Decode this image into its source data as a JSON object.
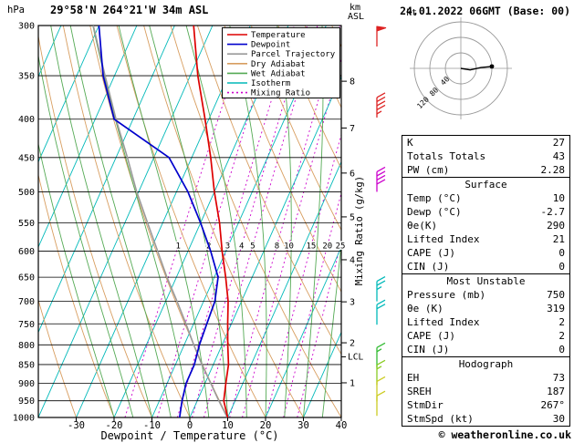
{
  "header": {
    "pressure_unit": "hPa",
    "station": "29°58'N 264°21'W 34m ASL",
    "datetime": "24.01.2022 06GMT (Base: 00)",
    "altitude_unit_line1": "km",
    "altitude_unit_line2": "ASL"
  },
  "axes": {
    "pressure_ticks": [
      300,
      350,
      400,
      450,
      500,
      550,
      600,
      650,
      700,
      750,
      800,
      850,
      900,
      950,
      1000
    ],
    "temp_ticks": [
      -30,
      -20,
      -10,
      0,
      10,
      20,
      30,
      40
    ],
    "x_title": "Dewpoint / Temperature (°C)",
    "mixing_ratio_axis_label": "Mixing Ratio (g/kg)",
    "km_marks": [
      {
        "km": 8,
        "p": 356
      },
      {
        "km": 7,
        "p": 411
      },
      {
        "km": 6,
        "p": 472
      },
      {
        "km": 5,
        "p": 540
      },
      {
        "km": 4,
        "p": 616
      },
      {
        "km": 3,
        "p": 701
      },
      {
        "km": 2,
        "p": 795
      },
      {
        "km": 1,
        "p": 899
      }
    ],
    "lcl": {
      "label": "LCL",
      "pressure": 830
    }
  },
  "legend": [
    {
      "label": "Temperature",
      "color": "#dd0000",
      "dash": ""
    },
    {
      "label": "Dewpoint",
      "color": "#0000cc",
      "dash": ""
    },
    {
      "label": "Parcel Trajectory",
      "color": "#9a9a9a",
      "dash": ""
    },
    {
      "label": "Dry Adiabat",
      "color": "#d89e60",
      "dash": ""
    },
    {
      "label": "Wet Adiabat",
      "color": "#55aa55",
      "dash": ""
    },
    {
      "label": "Isotherm",
      "color": "#00b9b9",
      "dash": ""
    },
    {
      "label": "Mixing Ratio",
      "color": "#cc00cc",
      "dash": "2,3"
    }
  ],
  "chart_data": {
    "type": "line",
    "variant": "skew-t-log-p-sounding",
    "title": "29°58'N 264°21'W 34m ASL",
    "xlabel": "Dewpoint / Temperature (°C)",
    "ylabel": "hPa",
    "x_range_at_surface": [
      -40,
      40
    ],
    "pressure_range": [
      300,
      1000
    ],
    "grid": {
      "isotherm": {
        "color": "#00b9b9",
        "min_c": -120,
        "max_c": 40,
        "step_c": 10
      },
      "dry_adiabat": {
        "color": "#d89e60",
        "theta_min_c": -40,
        "theta_max_c": 180,
        "step_c": 10
      },
      "wet_adiabat": {
        "color": "#55aa55",
        "start_min_c": -20,
        "start_max_c": 35,
        "step_c": 5
      },
      "mixing_ratio": {
        "color": "#cc00cc",
        "values": [
          1,
          2,
          3,
          4,
          5,
          8,
          10,
          15,
          20,
          25
        ],
        "label_pressure": 590
      },
      "pressure_line_color": "#000000"
    },
    "series": [
      {
        "name": "Temperature",
        "color": "#dd0000",
        "width": 1.7,
        "points": [
          [
            1000,
            10
          ],
          [
            950,
            7
          ],
          [
            900,
            5.5
          ],
          [
            850,
            4
          ],
          [
            800,
            1.5
          ],
          [
            750,
            -1
          ],
          [
            700,
            -3.5
          ],
          [
            650,
            -7
          ],
          [
            600,
            -11
          ],
          [
            550,
            -15
          ],
          [
            500,
            -20
          ],
          [
            450,
            -25
          ],
          [
            400,
            -31
          ],
          [
            350,
            -38
          ],
          [
            300,
            -45
          ]
        ]
      },
      {
        "name": "Dewpoint",
        "color": "#0000cc",
        "width": 1.7,
        "points": [
          [
            1000,
            -2.7
          ],
          [
            950,
            -4
          ],
          [
            900,
            -5
          ],
          [
            850,
            -5
          ],
          [
            800,
            -6
          ],
          [
            750,
            -6.5
          ],
          [
            700,
            -7
          ],
          [
            650,
            -9
          ],
          [
            600,
            -14
          ],
          [
            550,
            -20
          ],
          [
            500,
            -27
          ],
          [
            450,
            -36
          ],
          [
            400,
            -55
          ],
          [
            350,
            -63
          ],
          [
            300,
            -70
          ]
        ]
      },
      {
        "name": "Parcel Trajectory",
        "color": "#9a9a9a",
        "width": 1.6,
        "points": [
          [
            1000,
            9.9
          ],
          [
            950,
            5.7
          ],
          [
            900,
            1.5
          ],
          [
            850,
            -3
          ],
          [
            800,
            -7.5
          ],
          [
            750,
            -12
          ],
          [
            700,
            -17
          ],
          [
            650,
            -22.5
          ],
          [
            600,
            -28
          ],
          [
            550,
            -34
          ],
          [
            500,
            -40.5
          ],
          [
            450,
            -47
          ],
          [
            400,
            -54.5
          ],
          [
            350,
            -62.5
          ],
          [
            300,
            -71.5
          ]
        ]
      }
    ],
    "wind_barbs": [
      {
        "p": 320,
        "speed_kt": 50,
        "color": "#dd2222"
      },
      {
        "p": 398,
        "speed_kt": 45,
        "color": "#dd2222"
      },
      {
        "p": 500,
        "speed_kt": 40,
        "color": "#cc00cc"
      },
      {
        "p": 700,
        "speed_kt": 25,
        "color": "#00b9b9"
      },
      {
        "p": 752,
        "speed_kt": 20,
        "color": "#00b9b9"
      },
      {
        "p": 858,
        "speed_kt": 15,
        "color": "#33bb33"
      },
      {
        "p": 905,
        "speed_kt": 15,
        "color": "#88cc22"
      },
      {
        "p": 952,
        "speed_kt": 10,
        "color": "#cccc22"
      },
      {
        "p": 995,
        "speed_kt": 10,
        "color": "#cccc22"
      }
    ],
    "hodograph": {
      "unit": "kt",
      "rings": [
        40,
        80,
        120
      ],
      "ring_color": "#999999",
      "trace_color": "#000000",
      "trace_points_kt": [
        [
          0,
          0
        ],
        [
          24,
          -4
        ],
        [
          52,
          2
        ],
        [
          80,
          5
        ]
      ],
      "storm_dot_kt": [
        80,
        5
      ]
    }
  },
  "stats": {
    "sections": [
      {
        "title": "",
        "rows": [
          [
            "K",
            "27"
          ],
          [
            "Totals Totals",
            "43"
          ],
          [
            "PW (cm)",
            "2.28"
          ]
        ]
      },
      {
        "title": "Surface",
        "rows": [
          [
            "Temp (°C)",
            "10"
          ],
          [
            "Dewp (°C)",
            "-2.7"
          ],
          [
            "θe(K)",
            "290"
          ],
          [
            "Lifted Index",
            "21"
          ],
          [
            "CAPE (J)",
            "0"
          ],
          [
            "CIN (J)",
            "0"
          ]
        ]
      },
      {
        "title": "Most Unstable",
        "rows": [
          [
            "Pressure (mb)",
            "750"
          ],
          [
            "θe (K)",
            "319"
          ],
          [
            "Lifted Index",
            "2"
          ],
          [
            "CAPE (J)",
            "2"
          ],
          [
            "CIN (J)",
            "0"
          ]
        ]
      },
      {
        "title": "Hodograph",
        "rows": [
          [
            "EH",
            "73"
          ],
          [
            "SREH",
            "187"
          ],
          [
            "StmDir",
            "267°"
          ],
          [
            "StmSpd (kt)",
            "30"
          ]
        ]
      }
    ]
  },
  "copyright": "© weatheronline.co.uk"
}
